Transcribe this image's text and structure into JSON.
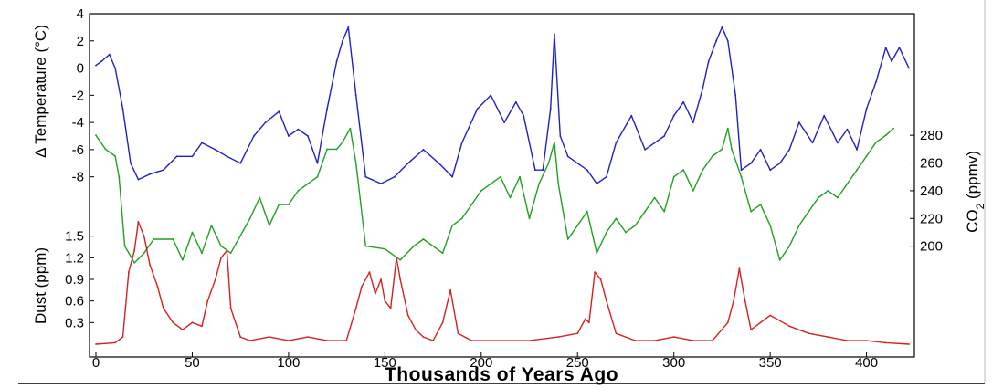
{
  "chart_data": {
    "type": "line",
    "xlabel": "Thousands of Years Ago",
    "xlim": [
      0,
      422
    ],
    "x_ticks": [
      "0",
      "50",
      "100",
      "150",
      "200",
      "250",
      "300",
      "350",
      "400"
    ],
    "panels": [
      {
        "id": "temperature",
        "ylabel": "Δ Temperature (°C)",
        "y_ticks": [
          "4",
          "2",
          "0",
          "-2",
          "-4",
          "-6",
          "-8"
        ],
        "ylim": [
          -9.5,
          4
        ],
        "series": [
          {
            "color": "#2020c8",
            "x": [
              0,
              3,
              7,
              10,
              14,
              18,
              22,
              28,
              35,
              42,
              50,
              55,
              62,
              68,
              75,
              82,
              88,
              95,
              100,
              105,
              110,
              115,
              120,
              125,
              128,
              131,
              135,
              140,
              148,
              155,
              162,
              170,
              178,
              185,
              190,
              198,
              205,
              212,
              218,
              222,
              228,
              232,
              236,
              238,
              241,
              245,
              250,
              255,
              260,
              265,
              270,
              278,
              285,
              290,
              295,
              300,
              305,
              310,
              315,
              318,
              322,
              325,
              328,
              332,
              335,
              340,
              345,
              350,
              355,
              360,
              365,
              372,
              378,
              385,
              390,
              395,
              400,
              405,
              410,
              413,
              417,
              422
            ],
            "y": [
              0.2,
              0.5,
              1.0,
              0.0,
              -3.0,
              -7.0,
              -8.2,
              -7.8,
              -7.5,
              -6.5,
              -6.5,
              -5.5,
              -6.0,
              -6.5,
              -7.0,
              -5.0,
              -4.0,
              -3.2,
              -5.0,
              -4.5,
              -5.0,
              -7.0,
              -3.0,
              0.5,
              2.0,
              3.0,
              -2.0,
              -8.0,
              -8.5,
              -8.0,
              -7.0,
              -6.0,
              -7.0,
              -8.0,
              -5.5,
              -3.0,
              -2.0,
              -4.0,
              -2.5,
              -3.5,
              -7.5,
              -7.5,
              -3.0,
              2.5,
              -5.0,
              -6.5,
              -7.0,
              -7.5,
              -8.5,
              -8.0,
              -5.5,
              -3.5,
              -6.0,
              -5.5,
              -5.0,
              -3.5,
              -2.5,
              -4.0,
              -1.5,
              0.5,
              2.0,
              3.0,
              2.0,
              -2.0,
              -7.5,
              -7.0,
              -6.0,
              -7.5,
              -7.0,
              -6.0,
              -4.0,
              -5.5,
              -3.5,
              -5.5,
              -4.5,
              -6.0,
              -3.0,
              -1.0,
              1.5,
              0.5,
              1.5,
              0.0
            ]
          }
        ]
      },
      {
        "id": "co2",
        "ylabel": "CO2 (ppmv)",
        "ylabel_base": "CO",
        "ylabel_sub": "2",
        "ylabel_suffix": " (ppmv)",
        "y_ticks": [
          "280",
          "260",
          "240",
          "220",
          "200"
        ],
        "ylim": [
          180,
          290
        ],
        "series": [
          {
            "color": "#20a020",
            "x": [
              0,
              5,
              10,
              12,
              15,
              20,
              25,
              30,
              40,
              45,
              50,
              55,
              60,
              65,
              70,
              80,
              85,
              90,
              95,
              100,
              105,
              110,
              115,
              120,
              125,
              128,
              132,
              135,
              140,
              150,
              158,
              165,
              170,
              180,
              185,
              190,
              195,
              200,
              205,
              210,
              215,
              220,
              225,
              230,
              235,
              238,
              240,
              245,
              250,
              255,
              260,
              265,
              270,
              275,
              280,
              285,
              290,
              295,
              300,
              305,
              310,
              315,
              320,
              325,
              328,
              330,
              335,
              340,
              345,
              350,
              355,
              360,
              365,
              370,
              375,
              380,
              385,
              390,
              395,
              400,
              405,
              410,
              414
            ],
            "y": [
              280,
              270,
              265,
              250,
              200,
              188,
              195,
              205,
              205,
              190,
              210,
              195,
              215,
              200,
              195,
              220,
              235,
              215,
              230,
              230,
              240,
              245,
              250,
              270,
              270,
              275,
              285,
              260,
              200,
              198,
              190,
              200,
              205,
              195,
              215,
              220,
              230,
              240,
              245,
              250,
              235,
              250,
              220,
              245,
              260,
              275,
              245,
              205,
              215,
              225,
              195,
              210,
              220,
              210,
              215,
              225,
              235,
              225,
              250,
              255,
              240,
              255,
              265,
              270,
              285,
              270,
              250,
              225,
              230,
              215,
              190,
              200,
              215,
              225,
              235,
              240,
              235,
              245,
              255,
              265,
              275,
              280,
              285
            ]
          }
        ]
      },
      {
        "id": "dust",
        "ylabel": "Dust (ppm)",
        "y_ticks": [
          "1.5",
          "1.2",
          "0.9",
          "0.6",
          "0.3"
        ],
        "ylim": [
          0,
          1.8
        ],
        "series": [
          {
            "color": "#d82020",
            "x": [
              0,
              10,
              14,
              17,
              20,
              22,
              25,
              28,
              32,
              35,
              40,
              45,
              50,
              55,
              58,
              62,
              65,
              68,
              70,
              75,
              80,
              90,
              100,
              110,
              120,
              130,
              135,
              138,
              142,
              145,
              148,
              150,
              153,
              156,
              158,
              162,
              166,
              170,
              175,
              180,
              184,
              188,
              195,
              210,
              225,
              240,
              250,
              254,
              256,
              259,
              262,
              265,
              270,
              280,
              290,
              300,
              310,
              320,
              328,
              331,
              334,
              337,
              340,
              345,
              350,
              360,
              370,
              380,
              390,
              400,
              410,
              422
            ],
            "y": [
              0.0,
              0.02,
              0.1,
              1.0,
              1.3,
              1.7,
              1.5,
              1.1,
              0.8,
              0.5,
              0.3,
              0.2,
              0.3,
              0.25,
              0.6,
              0.9,
              1.2,
              1.3,
              0.5,
              0.1,
              0.05,
              0.1,
              0.05,
              0.1,
              0.05,
              0.05,
              0.5,
              0.8,
              1.0,
              0.7,
              0.9,
              0.6,
              0.5,
              1.2,
              0.9,
              0.4,
              0.2,
              0.1,
              0.05,
              0.3,
              0.75,
              0.15,
              0.05,
              0.05,
              0.05,
              0.1,
              0.15,
              0.35,
              0.3,
              1.0,
              0.9,
              0.6,
              0.15,
              0.05,
              0.05,
              0.1,
              0.05,
              0.05,
              0.3,
              0.6,
              1.05,
              0.6,
              0.2,
              0.3,
              0.4,
              0.25,
              0.15,
              0.1,
              0.05,
              0.05,
              0.02,
              0.0
            ]
          }
        ]
      }
    ]
  }
}
